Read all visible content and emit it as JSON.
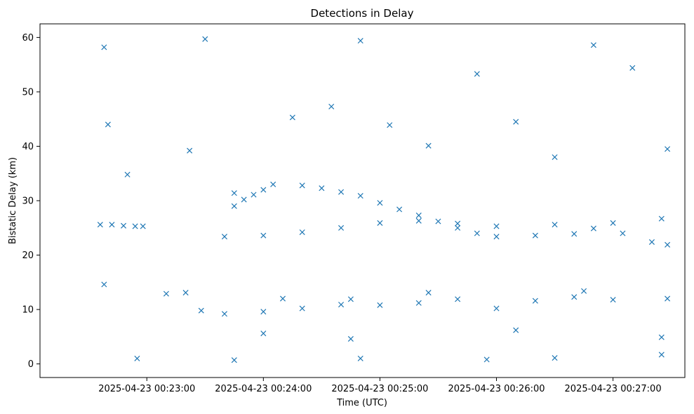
{
  "chart_data": {
    "type": "scatter",
    "title": "Detections in Delay",
    "xlabel": "Time (UTC)",
    "ylabel": "Bistatic Delay (km)",
    "marker": "x",
    "color": "#1f77b4",
    "xlim": [
      "2025-04-23 00:22:05",
      "2025-04-23 00:27:37"
    ],
    "ylim": [
      -2.5,
      62.5
    ],
    "x_ticks": [
      "2025-04-23 00:23:00",
      "2025-04-23 00:24:00",
      "2025-04-23 00:25:00",
      "2025-04-23 00:26:00",
      "2025-04-23 00:27:00"
    ],
    "y_ticks": [
      0,
      10,
      20,
      30,
      40,
      50,
      60
    ],
    "grid": false,
    "points": [
      [
        "2025-04-23 00:22:36",
        25.6
      ],
      [
        "2025-04-23 00:22:42",
        25.6
      ],
      [
        "2025-04-23 00:22:48",
        25.4
      ],
      [
        "2025-04-23 00:22:54",
        25.3
      ],
      [
        "2025-04-23 00:22:58",
        25.3
      ],
      [
        "2025-04-23 00:23:45",
        29.0
      ],
      [
        "2025-04-23 00:23:50",
        30.2
      ],
      [
        "2025-04-23 00:23:55",
        31.1
      ],
      [
        "2025-04-23 00:24:00",
        32.0
      ],
      [
        "2025-04-23 00:24:05",
        33.0
      ],
      [
        "2025-04-23 00:24:20",
        32.8
      ],
      [
        "2025-04-23 00:24:30",
        32.3
      ],
      [
        "2025-04-23 00:24:40",
        31.6
      ],
      [
        "2025-04-23 00:24:50",
        30.9
      ],
      [
        "2025-04-23 00:25:00",
        29.6
      ],
      [
        "2025-04-23 00:25:10",
        28.4
      ],
      [
        "2025-04-23 00:25:20",
        27.3
      ],
      [
        "2025-04-23 00:25:30",
        26.2
      ],
      [
        "2025-04-23 00:25:40",
        25.0
      ],
      [
        "2025-04-23 00:25:50",
        24.0
      ],
      [
        "2025-04-23 00:26:00",
        23.4
      ],
      [
        "2025-04-23 00:26:20",
        23.6
      ],
      [
        "2025-04-23 00:26:40",
        23.9
      ],
      [
        "2025-04-23 00:26:50",
        24.9
      ],
      [
        "2025-04-23 00:27:05",
        24.0
      ],
      [
        "2025-04-23 00:27:20",
        22.4
      ],
      [
        "2025-04-23 00:27:28",
        21.9
      ],
      [
        "2025-04-23 00:24:00",
        23.6
      ],
      [
        "2025-04-23 00:24:20",
        24.2
      ],
      [
        "2025-04-23 00:24:40",
        25.0
      ],
      [
        "2025-04-23 00:25:00",
        25.9
      ],
      [
        "2025-04-23 00:25:20",
        26.3
      ],
      [
        "2025-04-23 00:25:40",
        25.8
      ],
      [
        "2025-04-23 00:26:00",
        25.3
      ],
      [
        "2025-04-23 00:26:30",
        25.6
      ],
      [
        "2025-04-23 00:27:00",
        25.9
      ],
      [
        "2025-04-23 00:27:25",
        26.7
      ],
      [
        "2025-04-23 00:23:40",
        23.4
      ],
      [
        "2025-04-23 00:23:10",
        12.9
      ],
      [
        "2025-04-23 00:23:20",
        13.1
      ],
      [
        "2025-04-23 00:23:28",
        9.8
      ],
      [
        "2025-04-23 00:23:40",
        9.2
      ],
      [
        "2025-04-23 00:24:00",
        9.6
      ],
      [
        "2025-04-23 00:24:20",
        10.2
      ],
      [
        "2025-04-23 00:24:40",
        10.9
      ],
      [
        "2025-04-23 00:25:00",
        10.8
      ],
      [
        "2025-04-23 00:25:20",
        11.2
      ],
      [
        "2025-04-23 00:25:40",
        11.9
      ],
      [
        "2025-04-23 00:26:00",
        10.2
      ],
      [
        "2025-04-23 00:26:20",
        11.6
      ],
      [
        "2025-04-23 00:26:40",
        12.3
      ],
      [
        "2025-04-23 00:27:00",
        11.8
      ],
      [
        "2025-04-23 00:27:28",
        12.0
      ],
      [
        "2025-04-23 00:24:10",
        12.0
      ],
      [
        "2025-04-23 00:24:45",
        11.9
      ],
      [
        "2025-04-23 00:25:25",
        13.1
      ],
      [
        "2025-04-23 00:26:45",
        13.4
      ],
      [
        "2025-04-23 00:24:00",
        5.6
      ],
      [
        "2025-04-23 00:24:45",
        4.6
      ],
      [
        "2025-04-23 00:26:10",
        6.2
      ],
      [
        "2025-04-23 00:27:25",
        4.9
      ],
      [
        "2025-04-23 00:22:38",
        14.6
      ],
      [
        "2025-04-23 00:22:38",
        58.2
      ],
      [
        "2025-04-23 00:22:40",
        44.0
      ],
      [
        "2025-04-23 00:22:50",
        34.8
      ],
      [
        "2025-04-23 00:23:22",
        39.2
      ],
      [
        "2025-04-23 00:23:30",
        59.7
      ],
      [
        "2025-04-23 00:23:45",
        31.4
      ],
      [
        "2025-04-23 00:24:15",
        45.3
      ],
      [
        "2025-04-23 00:24:35",
        47.3
      ],
      [
        "2025-04-23 00:24:50",
        59.4
      ],
      [
        "2025-04-23 00:25:05",
        43.9
      ],
      [
        "2025-04-23 00:25:25",
        40.1
      ],
      [
        "2025-04-23 00:25:50",
        53.3
      ],
      [
        "2025-04-23 00:26:10",
        44.5
      ],
      [
        "2025-04-23 00:26:30",
        38.0
      ],
      [
        "2025-04-23 00:26:50",
        58.6
      ],
      [
        "2025-04-23 00:27:10",
        54.4
      ],
      [
        "2025-04-23 00:27:28",
        39.5
      ],
      [
        "2025-04-23 00:22:55",
        1.0
      ],
      [
        "2025-04-23 00:23:45",
        0.7
      ],
      [
        "2025-04-23 00:24:50",
        1.0
      ],
      [
        "2025-04-23 00:25:55",
        0.8
      ],
      [
        "2025-04-23 00:26:30",
        1.1
      ],
      [
        "2025-04-23 00:27:25",
        1.7
      ]
    ]
  }
}
